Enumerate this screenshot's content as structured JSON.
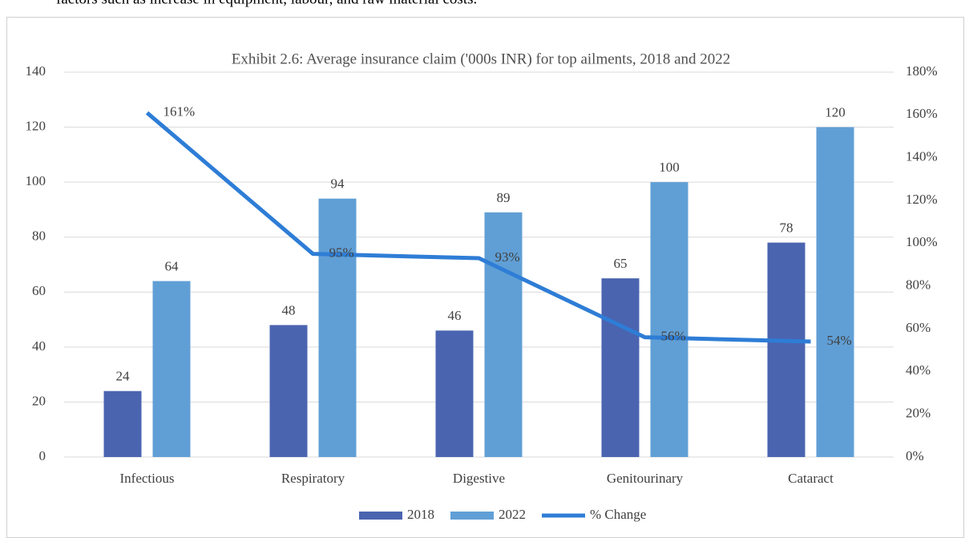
{
  "context_text": "factors such as increase in equipment, labour, and raw material costs.",
  "chart_data": {
    "type": "bar",
    "title": "Exhibit 2.6: Average insurance claim ('000s INR) for top ailments, 2018 and 2022",
    "categories": [
      "Infectious",
      "Respiratory",
      "Digestive",
      "Genitourinary",
      "Cataract"
    ],
    "series": [
      {
        "name": "2018",
        "type": "bar",
        "color": "#4a64b0",
        "values": [
          24,
          48,
          46,
          65,
          78
        ]
      },
      {
        "name": "2022",
        "type": "bar",
        "color": "#609fd6",
        "values": [
          64,
          94,
          89,
          100,
          120
        ]
      },
      {
        "name": "% Change",
        "type": "line",
        "axis": "y2",
        "color": "#2e7dd6",
        "values": [
          161,
          95,
          93,
          56,
          54
        ],
        "value_labels": [
          "161%",
          "95%",
          "93%",
          "56%",
          "54%"
        ]
      }
    ],
    "ylim": [
      0,
      140
    ],
    "yticks": [
      0,
      20,
      40,
      60,
      80,
      100,
      120,
      140
    ],
    "y2lim": [
      0,
      180
    ],
    "y2ticks": [
      {
        "value": 0,
        "label": "0%"
      },
      {
        "value": 20,
        "label": "20%"
      },
      {
        "value": 40,
        "label": "40%"
      },
      {
        "value": 60,
        "label": "60%"
      },
      {
        "value": 80,
        "label": "80%"
      },
      {
        "value": 100,
        "label": "100%"
      },
      {
        "value": 120,
        "label": "120%"
      },
      {
        "value": 140,
        "label": "140%"
      },
      {
        "value": 160,
        "label": "160%"
      },
      {
        "value": 180,
        "label": "180%"
      }
    ],
    "grid": true,
    "legend": "bottom"
  }
}
